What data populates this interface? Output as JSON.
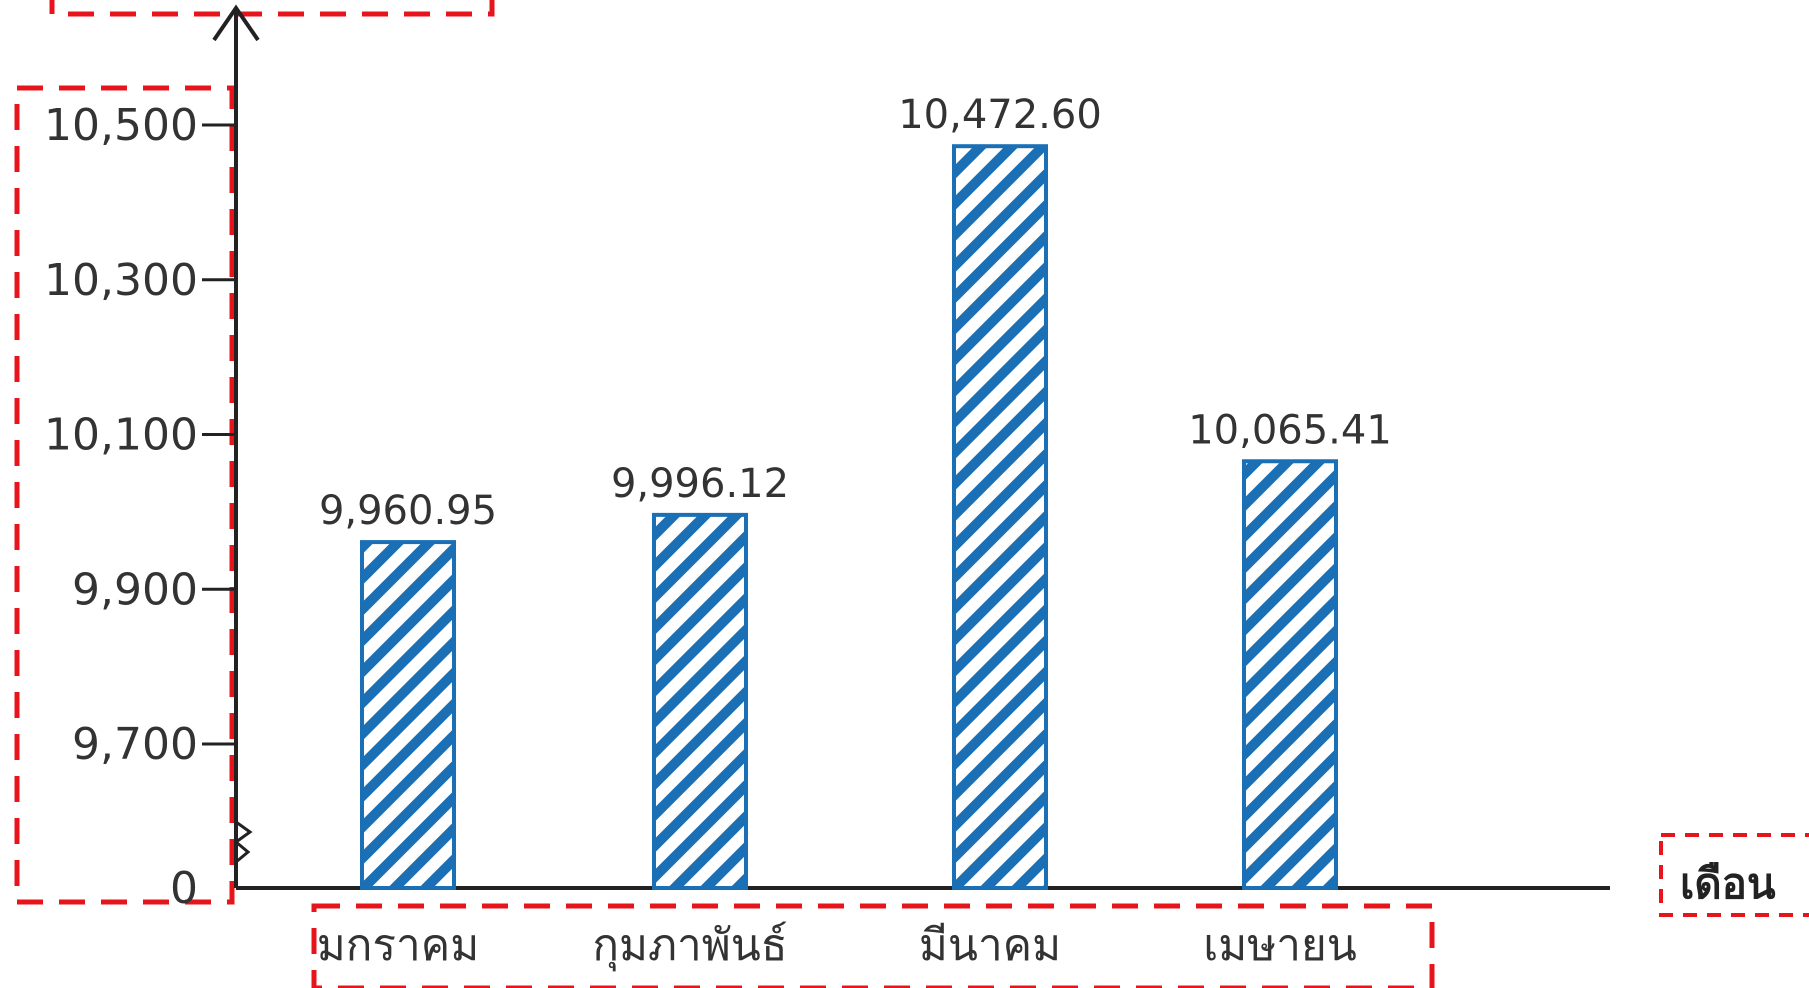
{
  "chart_data": {
    "type": "bar",
    "categories": [
      "มกราคม",
      "กุมภาพันธ์",
      "มีนาคม",
      "เมษายน"
    ],
    "values": [
      9960.95,
      9996.12,
      10472.6,
      10065.41
    ],
    "value_labels": [
      "9,960.95",
      "9,996.12",
      "10,472.60",
      "10,065.41"
    ],
    "y_ticks": [
      {
        "value": 0,
        "label": "0"
      },
      {
        "value": 9700,
        "label": "9,700"
      },
      {
        "value": 9900,
        "label": "9,900"
      },
      {
        "value": 10100,
        "label": "10,100"
      },
      {
        "value": 10300,
        "label": "10,300"
      },
      {
        "value": 10500,
        "label": "10,500"
      }
    ],
    "ylim": [
      9600,
      10500
    ],
    "axis_break": true,
    "xlabel": "เดือน",
    "ylabel": "",
    "title": "",
    "grid": false,
    "bar_style": "diagonal-hatch",
    "colors": {
      "bar_stroke": "#1a6fb5",
      "hatch": "#1a6fb5",
      "axis": "#222222",
      "annotation_box": "#e8141b"
    }
  }
}
